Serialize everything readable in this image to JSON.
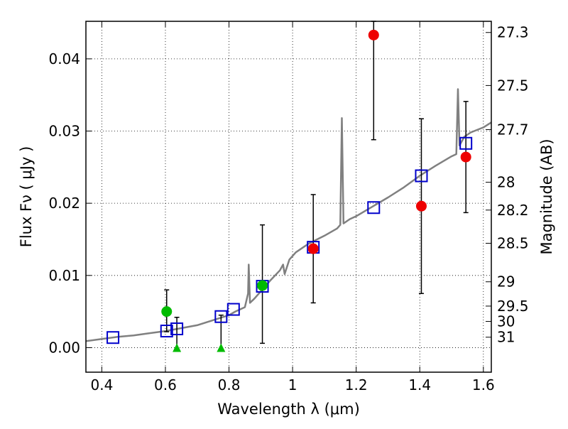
{
  "chart_data": {
    "type": "scatter",
    "xlabel": "Wavelength  λ (μm)",
    "ylabel": "Flux  Fν  ( μJy )",
    "ylabel_right": "Magnitude (AB)",
    "xlim": [
      0.35,
      1.625
    ],
    "ylim": [
      -0.0034,
      0.0452
    ],
    "grid": true,
    "x_ticks": [
      {
        "value": 0.4,
        "label": "0.4"
      },
      {
        "value": 0.6,
        "label": "0.6"
      },
      {
        "value": 0.8,
        "label": "0.8"
      },
      {
        "value": 1.0,
        "label": "1"
      },
      {
        "value": 1.2,
        "label": "1.2"
      },
      {
        "value": 1.4,
        "label": "1.4"
      },
      {
        "value": 1.6,
        "label": "1.6"
      }
    ],
    "y_ticks": [
      {
        "value": 0.0,
        "label": "0.00"
      },
      {
        "value": 0.01,
        "label": "0.01"
      },
      {
        "value": 0.02,
        "label": "0.02"
      },
      {
        "value": 0.03,
        "label": "0.03"
      },
      {
        "value": 0.04,
        "label": "0.04"
      }
    ],
    "right_ticks": [
      {
        "mag": 27.3,
        "label": "27.3"
      },
      {
        "mag": 27.5,
        "label": "27.5"
      },
      {
        "mag": 27.7,
        "label": "27.7"
      },
      {
        "mag": 28,
        "label": "28"
      },
      {
        "mag": 28.2,
        "label": "28.2"
      },
      {
        "mag": 28.5,
        "label": "28.5"
      },
      {
        "mag": 29,
        "label": "29"
      },
      {
        "mag": 29.5,
        "label": "29.5"
      },
      {
        "mag": 30,
        "label": "30"
      },
      {
        "mag": 31,
        "label": "31"
      }
    ],
    "series": [
      {
        "kind": "model-spectrum",
        "color": "#808080",
        "points": [
          [
            0.35,
            0.0009
          ],
          [
            0.4,
            0.0012
          ],
          [
            0.45,
            0.0015
          ],
          [
            0.5,
            0.0017
          ],
          [
            0.55,
            0.002
          ],
          [
            0.6,
            0.0023
          ],
          [
            0.65,
            0.0027
          ],
          [
            0.7,
            0.0031
          ],
          [
            0.75,
            0.0038
          ],
          [
            0.8,
            0.0045
          ],
          [
            0.82,
            0.005
          ],
          [
            0.85,
            0.0056
          ],
          [
            0.86,
            0.0075
          ],
          [
            0.862,
            0.0115
          ],
          [
            0.866,
            0.0062
          ],
          [
            0.88,
            0.0068
          ],
          [
            0.9,
            0.0078
          ],
          [
            0.93,
            0.0093
          ],
          [
            0.96,
            0.0107
          ],
          [
            0.97,
            0.0115
          ],
          [
            0.975,
            0.0102
          ],
          [
            0.99,
            0.0122
          ],
          [
            1.01,
            0.0132
          ],
          [
            1.05,
            0.0144
          ],
          [
            1.1,
            0.0155
          ],
          [
            1.14,
            0.0165
          ],
          [
            1.15,
            0.017
          ],
          [
            1.155,
            0.0318
          ],
          [
            1.16,
            0.0172
          ],
          [
            1.18,
            0.0178
          ],
          [
            1.2,
            0.0182
          ],
          [
            1.25,
            0.0195
          ],
          [
            1.3,
            0.0208
          ],
          [
            1.35,
            0.0222
          ],
          [
            1.4,
            0.0238
          ],
          [
            1.45,
            0.0252
          ],
          [
            1.5,
            0.0265
          ],
          [
            1.515,
            0.0268
          ],
          [
            1.52,
            0.0358
          ],
          [
            1.525,
            0.028
          ],
          [
            1.54,
            0.0292
          ],
          [
            1.56,
            0.0298
          ],
          [
            1.6,
            0.0305
          ],
          [
            1.625,
            0.0312
          ]
        ]
      },
      {
        "kind": "model-band-flux",
        "marker": "open-square",
        "color": "#0000cc",
        "points": [
          [
            0.435,
            0.0014
          ],
          [
            0.604,
            0.0023
          ],
          [
            0.636,
            0.0026
          ],
          [
            0.775,
            0.0043
          ],
          [
            0.814,
            0.0053
          ],
          [
            0.905,
            0.0085
          ],
          [
            1.065,
            0.0139
          ],
          [
            1.255,
            0.0194
          ],
          [
            1.405,
            0.0238
          ],
          [
            1.545,
            0.0283
          ]
        ]
      },
      {
        "kind": "observed",
        "marker": "circle",
        "color": "#00bb00",
        "points": [
          {
            "x": 0.604,
            "y": 0.005,
            "err_low": 0.0022,
            "err_high": 0.008
          },
          {
            "x": 0.905,
            "y": 0.0086,
            "err_low": 0.0006,
            "err_high": 0.017
          }
        ]
      },
      {
        "kind": "observed",
        "marker": "circle",
        "color": "#ee0000",
        "points": [
          {
            "x": 1.065,
            "y": 0.0137,
            "err_low": 0.0062,
            "err_high": 0.0212
          },
          {
            "x": 1.255,
            "y": 0.0433,
            "err_low": 0.0288,
            "err_high": 0.0452
          },
          {
            "x": 1.405,
            "y": 0.0196,
            "err_low": 0.0075,
            "err_high": 0.0317
          },
          {
            "x": 1.545,
            "y": 0.0264,
            "err_low": 0.0187,
            "err_high": 0.0341
          }
        ]
      },
      {
        "kind": "upper-limit",
        "marker": "triangle-up",
        "color": "#00bb00",
        "points": [
          {
            "x": 0.636,
            "y": 0.0,
            "err_high": 0.0042
          },
          {
            "x": 0.775,
            "y": 0.0,
            "err_high": 0.0045
          }
        ]
      }
    ]
  }
}
